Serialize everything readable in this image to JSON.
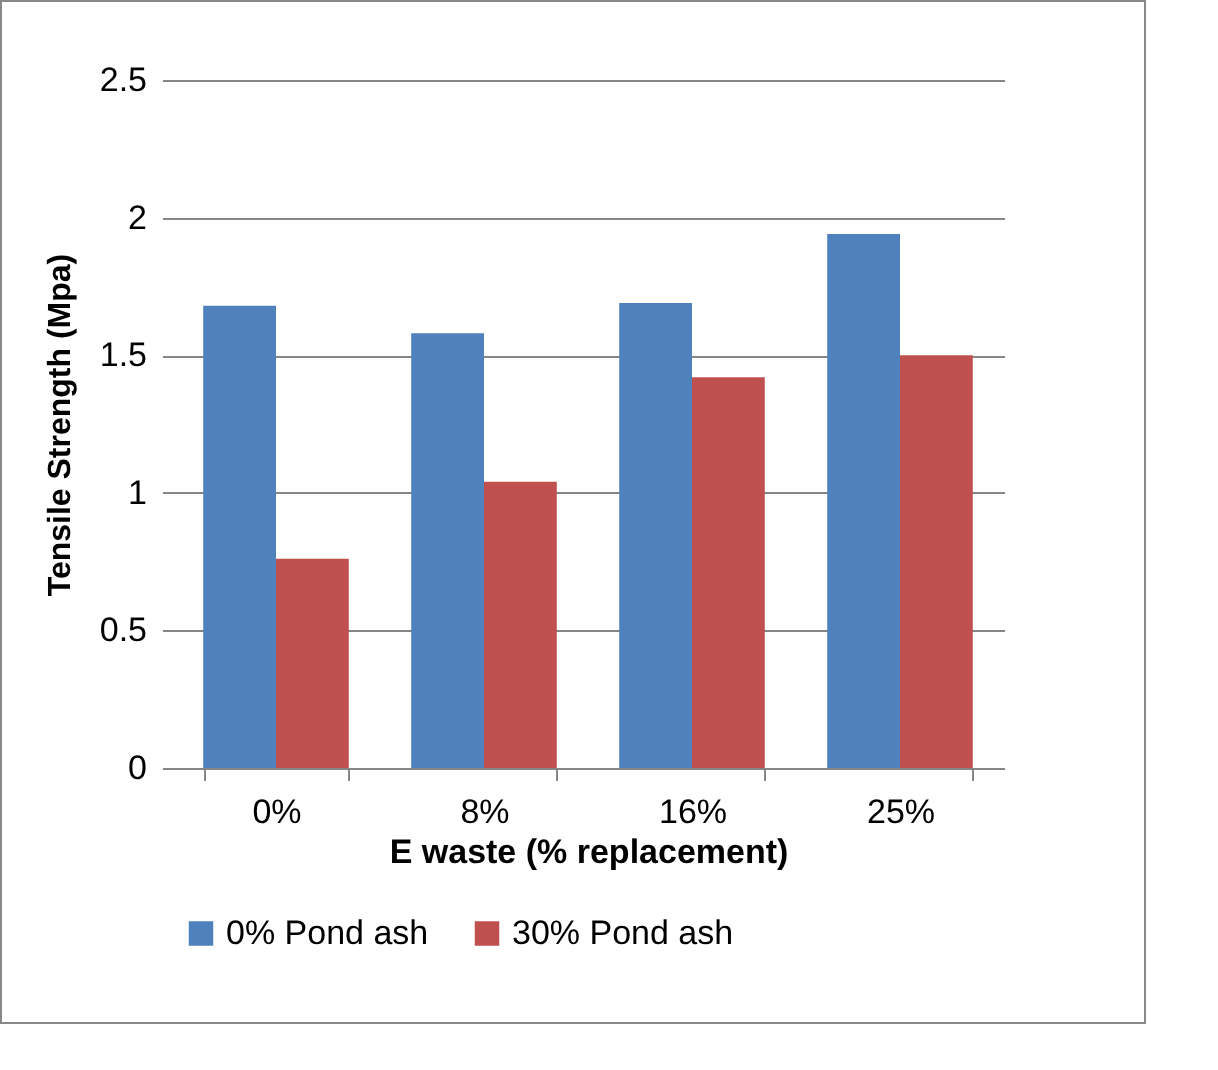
{
  "chart_data": {
    "type": "bar",
    "xlabel": "E waste (% replacement)",
    "ylabel": "Tensile Strength (Mpa)",
    "categories": [
      "0%",
      "8%",
      "16%",
      "25%"
    ],
    "series": [
      {
        "name": "0% Pond ash",
        "color": "#4f81bd",
        "values": [
          1.68,
          1.58,
          1.69,
          1.94
        ]
      },
      {
        "name": "30% Pond ash",
        "color": "#c0504d",
        "values": [
          0.76,
          1.04,
          1.42,
          1.5
        ]
      }
    ],
    "ylim": [
      0,
      2.5
    ],
    "yticks": [
      0,
      0.5,
      1,
      1.5,
      2,
      2.5
    ],
    "grid": "y",
    "legend": "bottom"
  }
}
